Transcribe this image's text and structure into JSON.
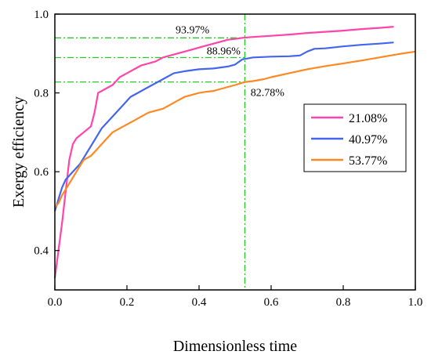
{
  "chart_data": {
    "type": "line",
    "title": "",
    "xlabel": "Dimensionless time",
    "ylabel": "Exergy efficiency",
    "xlim": [
      0,
      1.0
    ],
    "ylim": [
      0.3,
      1.0
    ],
    "x_ticks": [
      "0.0",
      "0.2",
      "0.4",
      "0.6",
      "0.8",
      "1.0"
    ],
    "x_tick_values": [
      0,
      0.2,
      0.4,
      0.6,
      0.8,
      1.0
    ],
    "y_ticks": [
      "0.4",
      "0.6",
      "0.8",
      "1.0"
    ],
    "y_tick_values": [
      0.4,
      0.6,
      0.8,
      1.0
    ],
    "legend_position": "right",
    "series": [
      {
        "name": "21.08%",
        "color": "#ff44aa",
        "points": [
          [
            0,
            0.33
          ],
          [
            0.01,
            0.4
          ],
          [
            0.02,
            0.47
          ],
          [
            0.03,
            0.55
          ],
          [
            0.04,
            0.63
          ],
          [
            0.05,
            0.67
          ],
          [
            0.06,
            0.685
          ],
          [
            0.08,
            0.7
          ],
          [
            0.1,
            0.715
          ],
          [
            0.11,
            0.75
          ],
          [
            0.12,
            0.8
          ],
          [
            0.14,
            0.81
          ],
          [
            0.16,
            0.82
          ],
          [
            0.18,
            0.84
          ],
          [
            0.2,
            0.85
          ],
          [
            0.22,
            0.86
          ],
          [
            0.24,
            0.87
          ],
          [
            0.26,
            0.875
          ],
          [
            0.28,
            0.88
          ],
          [
            0.3,
            0.89
          ],
          [
            0.32,
            0.895
          ],
          [
            0.34,
            0.9
          ],
          [
            0.36,
            0.905
          ],
          [
            0.38,
            0.91
          ],
          [
            0.4,
            0.915
          ],
          [
            0.42,
            0.92
          ],
          [
            0.44,
            0.925
          ],
          [
            0.46,
            0.93
          ],
          [
            0.48,
            0.935
          ],
          [
            0.5,
            0.937
          ],
          [
            0.52,
            0.9397
          ],
          [
            0.55,
            0.942
          ],
          [
            0.6,
            0.945
          ],
          [
            0.65,
            0.948
          ],
          [
            0.7,
            0.952
          ],
          [
            0.75,
            0.955
          ],
          [
            0.8,
            0.958
          ],
          [
            0.85,
            0.962
          ],
          [
            0.9,
            0.965
          ],
          [
            0.94,
            0.968
          ]
        ]
      },
      {
        "name": "40.97%",
        "color": "#4466ee",
        "points": [
          [
            0,
            0.5
          ],
          [
            0.01,
            0.53
          ],
          [
            0.02,
            0.56
          ],
          [
            0.03,
            0.58
          ],
          [
            0.05,
            0.6
          ],
          [
            0.07,
            0.62
          ],
          [
            0.09,
            0.65
          ],
          [
            0.11,
            0.68
          ],
          [
            0.13,
            0.71
          ],
          [
            0.15,
            0.73
          ],
          [
            0.17,
            0.75
          ],
          [
            0.19,
            0.77
          ],
          [
            0.21,
            0.79
          ],
          [
            0.23,
            0.8
          ],
          [
            0.25,
            0.81
          ],
          [
            0.27,
            0.82
          ],
          [
            0.29,
            0.83
          ],
          [
            0.31,
            0.84
          ],
          [
            0.33,
            0.85
          ],
          [
            0.36,
            0.855
          ],
          [
            0.4,
            0.86
          ],
          [
            0.44,
            0.862
          ],
          [
            0.48,
            0.867
          ],
          [
            0.5,
            0.872
          ],
          [
            0.52,
            0.885
          ],
          [
            0.55,
            0.89
          ],
          [
            0.6,
            0.892
          ],
          [
            0.65,
            0.893
          ],
          [
            0.68,
            0.895
          ],
          [
            0.7,
            0.905
          ],
          [
            0.72,
            0.912
          ],
          [
            0.75,
            0.913
          ],
          [
            0.8,
            0.918
          ],
          [
            0.85,
            0.922
          ],
          [
            0.9,
            0.925
          ],
          [
            0.94,
            0.928
          ]
        ]
      },
      {
        "name": "53.77%",
        "color": "#ff8822",
        "points": [
          [
            0,
            0.51
          ],
          [
            0.01,
            0.52
          ],
          [
            0.02,
            0.54
          ],
          [
            0.04,
            0.57
          ],
          [
            0.06,
            0.6
          ],
          [
            0.08,
            0.63
          ],
          [
            0.1,
            0.64
          ],
          [
            0.12,
            0.66
          ],
          [
            0.14,
            0.68
          ],
          [
            0.16,
            0.7
          ],
          [
            0.18,
            0.71
          ],
          [
            0.2,
            0.72
          ],
          [
            0.22,
            0.73
          ],
          [
            0.24,
            0.74
          ],
          [
            0.26,
            0.75
          ],
          [
            0.28,
            0.755
          ],
          [
            0.3,
            0.76
          ],
          [
            0.32,
            0.77
          ],
          [
            0.34,
            0.78
          ],
          [
            0.36,
            0.79
          ],
          [
            0.38,
            0.795
          ],
          [
            0.4,
            0.8
          ],
          [
            0.42,
            0.803
          ],
          [
            0.44,
            0.805
          ],
          [
            0.46,
            0.81
          ],
          [
            0.48,
            0.815
          ],
          [
            0.5,
            0.82
          ],
          [
            0.5276,
            0.8278
          ],
          [
            0.55,
            0.83
          ],
          [
            0.58,
            0.835
          ],
          [
            0.6,
            0.84
          ],
          [
            0.65,
            0.85
          ],
          [
            0.7,
            0.86
          ],
          [
            0.75,
            0.868
          ],
          [
            0.8,
            0.875
          ],
          [
            0.85,
            0.882
          ],
          [
            0.9,
            0.89
          ],
          [
            0.95,
            0.898
          ],
          [
            1.0,
            0.905
          ]
        ]
      }
    ],
    "reference_lines": {
      "color": "#22cc22",
      "vertical_x": 0.527,
      "horizontal_y": [
        0.9397,
        0.8896,
        0.8278
      ]
    },
    "annotations": [
      {
        "text": "93.97%",
        "x": 0.4,
        "y": 0.9397
      },
      {
        "text": "88.96%",
        "x": 0.53,
        "y": 0.8896
      },
      {
        "text": "82.78%",
        "x": 0.53,
        "y": 0.8278
      }
    ]
  }
}
